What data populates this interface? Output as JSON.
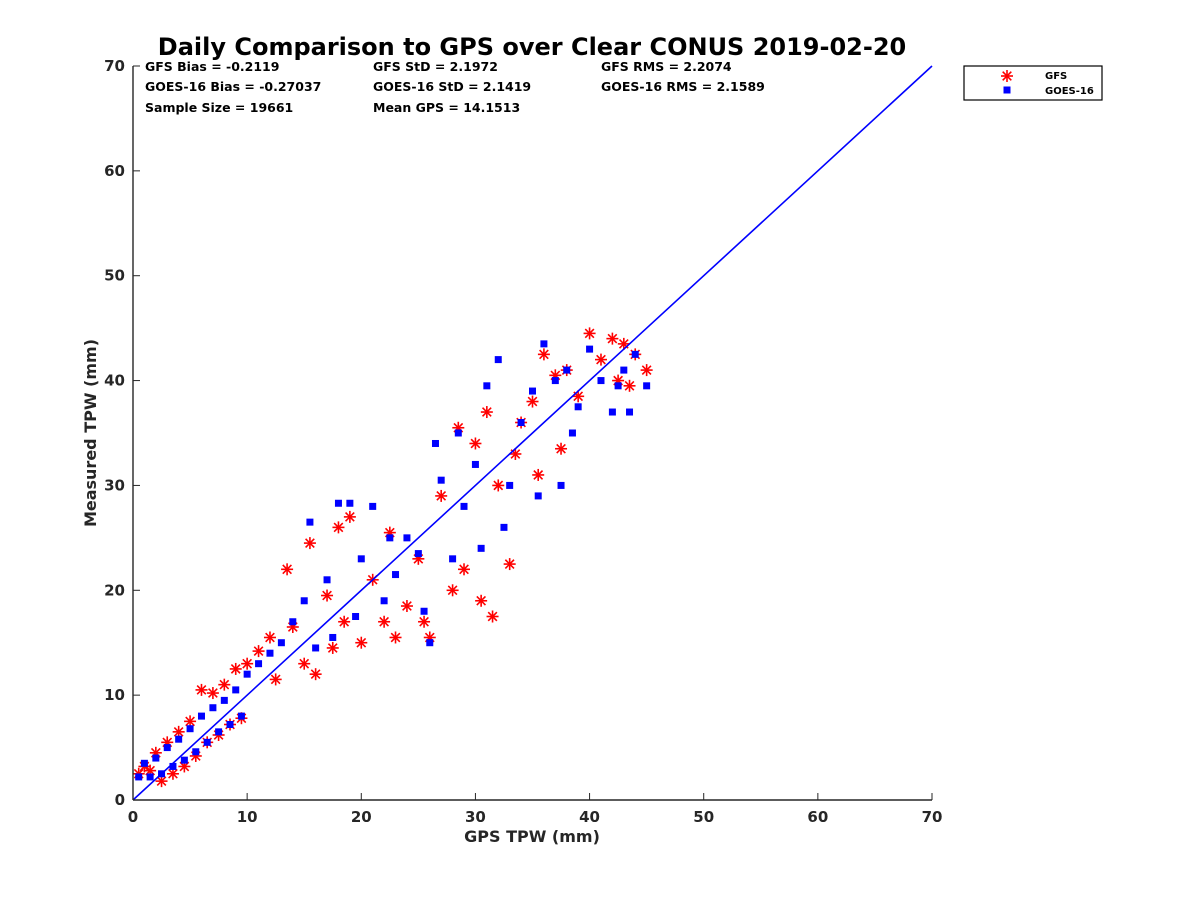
{
  "chart_data": {
    "type": "scatter",
    "title": "Daily Comparison to GPS over Clear CONUS 2019-02-20",
    "xlabel": "GPS TPW (mm)",
    "ylabel": "Measured TPW (mm)",
    "xlim": [
      0,
      70
    ],
    "ylim": [
      0,
      70
    ],
    "xticks": [
      "0",
      "10",
      "20",
      "30",
      "40",
      "50",
      "60",
      "70"
    ],
    "yticks": [
      "0",
      "10",
      "20",
      "30",
      "40",
      "50",
      "60",
      "70"
    ],
    "stats": [
      "GFS Bias = -0.2119",
      "GFS StD = 2.1972",
      "GFS RMS = 2.2074",
      "GOES-16 Bias = -0.27037",
      "GOES-16 StD = 2.1419",
      "GOES-16 RMS = 2.1589",
      "Sample Size = 19661",
      "Mean GPS = 14.1513"
    ],
    "legend": {
      "position": "outside top-right",
      "entries": [
        "GFS",
        "GOES-16"
      ]
    },
    "reference_line": {
      "label": "1:1",
      "x": [
        0,
        70
      ],
      "y": [
        0,
        70
      ]
    },
    "series": [
      {
        "name": "GFS",
        "marker": "asterisk",
        "color": "#ff0000",
        "points": [
          [
            0.5,
            2.5
          ],
          [
            1,
            3.2
          ],
          [
            1.5,
            2.8
          ],
          [
            2,
            4.5
          ],
          [
            2.5,
            1.8
          ],
          [
            3,
            5.5
          ],
          [
            3.5,
            2.5
          ],
          [
            4,
            6.5
          ],
          [
            4.5,
            3.2
          ],
          [
            5,
            7.5
          ],
          [
            5.5,
            4.2
          ],
          [
            6,
            10.5
          ],
          [
            6.5,
            5.5
          ],
          [
            7,
            10.2
          ],
          [
            7.5,
            6.2
          ],
          [
            8,
            11
          ],
          [
            8.5,
            7.2
          ],
          [
            9,
            12.5
          ],
          [
            9.5,
            7.8
          ],
          [
            10,
            13
          ],
          [
            11,
            14.2
          ],
          [
            12,
            15.5
          ],
          [
            12.5,
            11.5
          ],
          [
            13.5,
            22
          ],
          [
            14,
            16.5
          ],
          [
            15,
            13
          ],
          [
            15.5,
            24.5
          ],
          [
            16,
            12
          ],
          [
            17,
            19.5
          ],
          [
            17.5,
            14.5
          ],
          [
            18,
            26
          ],
          [
            18.5,
            17
          ],
          [
            19,
            27
          ],
          [
            20,
            15
          ],
          [
            21,
            21
          ],
          [
            22,
            17
          ],
          [
            22.5,
            25.5
          ],
          [
            23,
            15.5
          ],
          [
            24,
            18.5
          ],
          [
            25,
            23
          ],
          [
            25.5,
            17
          ],
          [
            26,
            15.5
          ],
          [
            27,
            29
          ],
          [
            28,
            20
          ],
          [
            28.5,
            35.5
          ],
          [
            29,
            22
          ],
          [
            30,
            34
          ],
          [
            30.5,
            19
          ],
          [
            31,
            37
          ],
          [
            31.5,
            17.5
          ],
          [
            32,
            30
          ],
          [
            33,
            22.5
          ],
          [
            33.5,
            33
          ],
          [
            34,
            36
          ],
          [
            35,
            38
          ],
          [
            35.5,
            31
          ],
          [
            36,
            42.5
          ],
          [
            37,
            40.5
          ],
          [
            37.5,
            33.5
          ],
          [
            38,
            41
          ],
          [
            39,
            38.5
          ],
          [
            40,
            44.5
          ],
          [
            41,
            42
          ],
          [
            42,
            44
          ],
          [
            42.5,
            40
          ],
          [
            43,
            43.5
          ],
          [
            43.5,
            39.5
          ],
          [
            44,
            42.5
          ],
          [
            45,
            41
          ]
        ]
      },
      {
        "name": "GOES-16",
        "marker": "square",
        "color": "#0000ff",
        "points": [
          [
            0.5,
            2.2
          ],
          [
            1,
            3.5
          ],
          [
            1.5,
            2.2
          ],
          [
            2,
            4
          ],
          [
            2.5,
            2.5
          ],
          [
            3,
            5
          ],
          [
            3.5,
            3.2
          ],
          [
            4,
            5.8
          ],
          [
            4.5,
            3.8
          ],
          [
            5,
            6.8
          ],
          [
            5.5,
            4.6
          ],
          [
            6,
            8
          ],
          [
            6.5,
            5.5
          ],
          [
            7,
            8.8
          ],
          [
            7.5,
            6.5
          ],
          [
            8,
            9.5
          ],
          [
            8.5,
            7.2
          ],
          [
            9,
            10.5
          ],
          [
            9.5,
            8
          ],
          [
            10,
            12
          ],
          [
            11,
            13
          ],
          [
            12,
            14
          ],
          [
            13,
            15
          ],
          [
            14,
            17
          ],
          [
            15,
            19
          ],
          [
            15.5,
            26.5
          ],
          [
            16,
            14.5
          ],
          [
            17,
            21
          ],
          [
            17.5,
            15.5
          ],
          [
            18,
            28.3
          ],
          [
            19,
            28.3
          ],
          [
            19.5,
            17.5
          ],
          [
            20,
            23
          ],
          [
            21,
            28
          ],
          [
            22,
            19
          ],
          [
            22.5,
            25
          ],
          [
            23,
            21.5
          ],
          [
            24,
            25
          ],
          [
            25,
            23.5
          ],
          [
            25.5,
            18
          ],
          [
            26,
            15
          ],
          [
            26.5,
            34
          ],
          [
            27,
            30.5
          ],
          [
            28,
            23
          ],
          [
            28.5,
            35
          ],
          [
            29,
            28
          ],
          [
            30,
            32
          ],
          [
            30.5,
            24
          ],
          [
            31,
            39.5
          ],
          [
            32,
            42
          ],
          [
            32.5,
            26
          ],
          [
            33,
            30
          ],
          [
            34,
            36
          ],
          [
            35,
            39
          ],
          [
            35.5,
            29
          ],
          [
            36,
            43.5
          ],
          [
            37,
            40
          ],
          [
            37.5,
            30
          ],
          [
            38,
            41
          ],
          [
            38.5,
            35
          ],
          [
            39,
            37.5
          ],
          [
            40,
            43
          ],
          [
            41,
            40
          ],
          [
            42,
            37
          ],
          [
            42.5,
            39.5
          ],
          [
            43,
            41
          ],
          [
            43.5,
            37
          ],
          [
            44,
            42.5
          ],
          [
            45,
            39.5
          ]
        ]
      }
    ]
  }
}
